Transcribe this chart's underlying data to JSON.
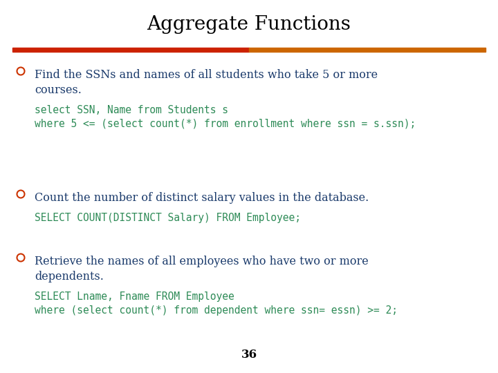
{
  "title": "Aggregate Functions",
  "title_fontsize": 20,
  "bg_color": "#ffffff",
  "divider_color_left": "#cc2200",
  "divider_color_right": "#cc6600",
  "bullet_color": "#cc3300",
  "text_color_dark": "#1a3a6b",
  "text_color_code": "#2e8b57",
  "page_number": "36",
  "bullets": [
    {
      "bullet_text_lines": [
        "Find the SSNs and names of all students who take 5 or more",
        "courses."
      ],
      "code_lines": [
        "select SSN, Name from Students s",
        "where 5 <= (select count(*) from enrollment where ssn = s.ssn);"
      ]
    },
    {
      "bullet_text_lines": [
        "Count the number of distinct salary values in the database."
      ],
      "code_lines": [
        "SELECT COUNT(DISTINCT Salary) FROM Employee;"
      ]
    },
    {
      "bullet_text_lines": [
        "Retrieve the names of all employees who have two or more",
        "dependents."
      ],
      "code_lines": [
        "SELECT Lname, Fname FROM Employee",
        "where (select count(*) from dependent where ssn= essn) >= 2;"
      ]
    }
  ]
}
